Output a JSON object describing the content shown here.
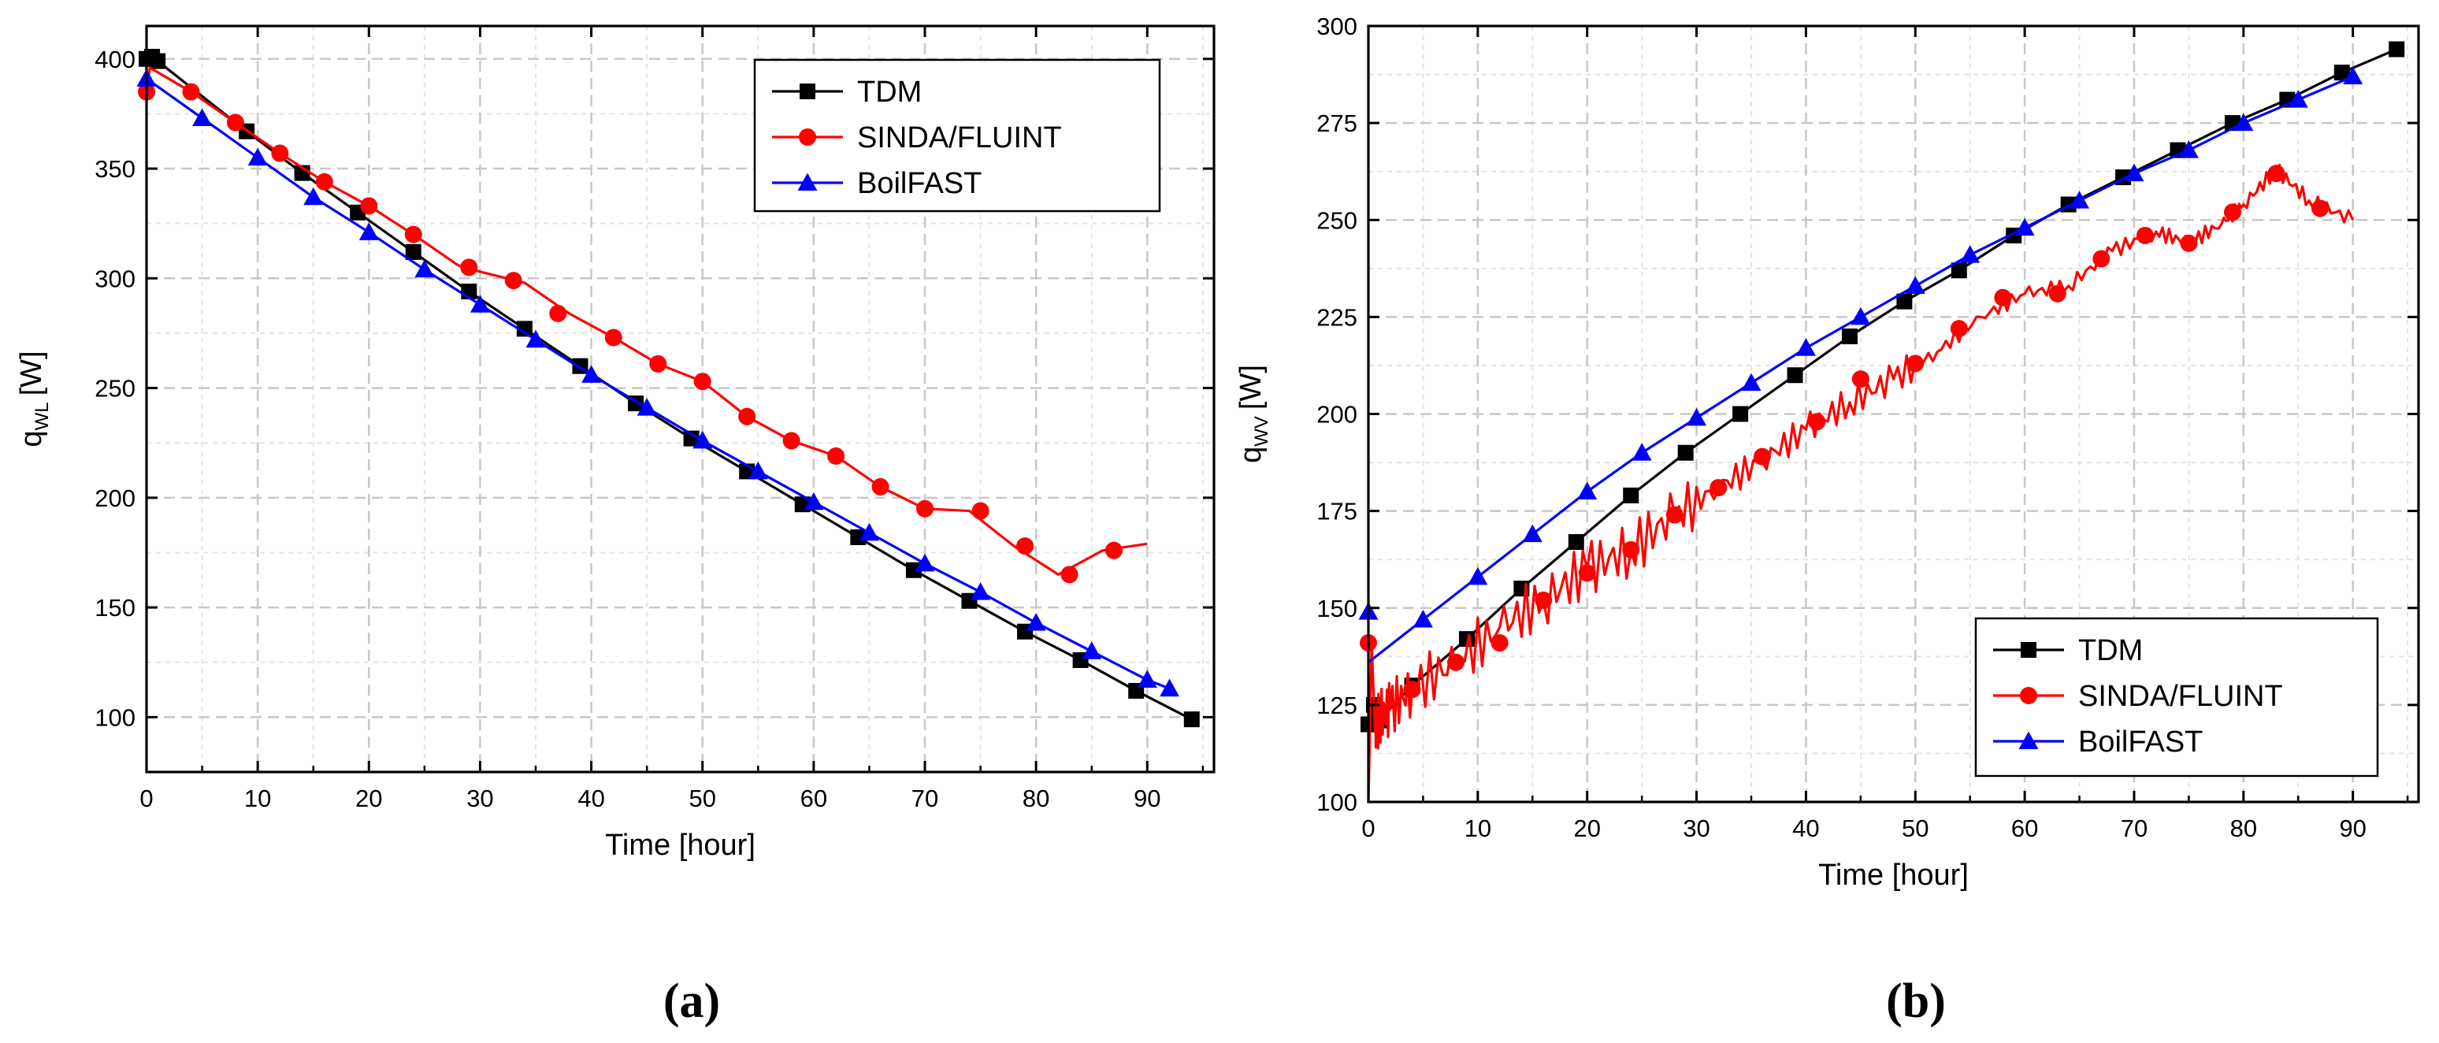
{
  "colors": {
    "TDM": "#000000",
    "SINDA/FLUINT": "#ff0000",
    "BoilFAST": "#0000ff",
    "grid": "#c8c8c8",
    "minor_grid": "#e4e4e4"
  },
  "chart_data": [
    {
      "type": "line",
      "panel": "a",
      "panel_label": "(a)",
      "xlabel": "Time [hour]",
      "ylabel_main": "q",
      "ylabel_sub": "WL",
      "ylabel_unit": "[W]",
      "xlim": [
        0,
        96
      ],
      "ylim": [
        75,
        415
      ],
      "xticks": [
        0,
        10,
        20,
        30,
        40,
        50,
        60,
        70,
        80,
        90
      ],
      "yticks": [
        100,
        150,
        200,
        250,
        300,
        350,
        400
      ],
      "grid": true,
      "legend_position": "top-right",
      "series": [
        {
          "name": "TDM",
          "marker": "square",
          "x": [
            0,
            0.5,
            1,
            9,
            14,
            19,
            24,
            29,
            34,
            39,
            44,
            49,
            54,
            59,
            64,
            69,
            74,
            79,
            84,
            89,
            94
          ],
          "y": [
            400,
            401,
            399,
            367,
            348,
            330,
            312,
            294,
            277,
            260,
            243,
            227,
            212,
            197,
            182,
            167,
            153,
            139,
            126,
            112,
            99
          ]
        },
        {
          "name": "SINDA/FLUINT",
          "marker": "circle",
          "x": [
            0,
            0.3,
            4,
            8,
            12,
            16,
            20,
            24,
            28,
            30,
            34,
            38,
            42,
            46,
            50,
            54,
            58,
            62,
            66,
            70,
            74,
            78,
            82,
            86,
            90
          ],
          "y": [
            385,
            396,
            385,
            371,
            357,
            344,
            333,
            320,
            306,
            303,
            298,
            284,
            273,
            261,
            253,
            237,
            226,
            219,
            205,
            195,
            194,
            178,
            165,
            176,
            179
          ],
          "markers_x": [
            0,
            4,
            8,
            12,
            16,
            20,
            24,
            29,
            33,
            37,
            42,
            46,
            50,
            54,
            58,
            62,
            66,
            70,
            75,
            79,
            83,
            87
          ],
          "markers_y": [
            385,
            385,
            371,
            357,
            344,
            333,
            320,
            305,
            299,
            284,
            273,
            261,
            253,
            237,
            226,
            219,
            205,
            195,
            194,
            178,
            165,
            176
          ]
        },
        {
          "name": "BoilFAST",
          "marker": "triangle",
          "x": [
            0,
            5,
            10,
            15,
            20,
            25,
            30,
            35,
            40,
            45,
            50,
            55,
            60,
            65,
            70,
            75,
            80,
            85,
            90,
            92
          ],
          "y": [
            391,
            373,
            355,
            337,
            321,
            304,
            288,
            272,
            256,
            241,
            226,
            212,
            198,
            184,
            170,
            157,
            143,
            130,
            117,
            113
          ]
        }
      ]
    },
    {
      "type": "line",
      "panel": "b",
      "panel_label": "(b)",
      "xlabel": "Time [hour]",
      "ylabel_main": "q",
      "ylabel_sub": "WV",
      "ylabel_unit": "[W]",
      "xlim": [
        0,
        96
      ],
      "ylim": [
        100,
        300
      ],
      "xticks": [
        0,
        10,
        20,
        30,
        40,
        50,
        60,
        70,
        80,
        90
      ],
      "yticks": [
        100,
        125,
        150,
        175,
        200,
        225,
        250,
        275,
        300
      ],
      "grid": true,
      "legend_position": "bottom-right",
      "series": [
        {
          "name": "TDM",
          "marker": "square",
          "x": [
            0,
            0.5,
            1,
            4,
            9,
            14,
            19,
            24,
            29,
            34,
            39,
            44,
            49,
            54,
            59,
            64,
            69,
            74,
            79,
            84,
            89,
            94
          ],
          "y": [
            120,
            125,
            121,
            130,
            142,
            155,
            167,
            179,
            190,
            200,
            210,
            220,
            229,
            237,
            246,
            254,
            261,
            268,
            275,
            281,
            288,
            294
          ]
        },
        {
          "name": "SINDA/FLUINT",
          "marker": "circle",
          "x": [
            0,
            0.3,
            0.6,
            1,
            2,
            4,
            8,
            12,
            16,
            20,
            24,
            28,
            32,
            36,
            40,
            44,
            48,
            52,
            56,
            60,
            64,
            68,
            72,
            75,
            78,
            80,
            83,
            86,
            90
          ],
          "y": [
            100,
            141,
            118,
            122,
            124,
            129,
            136,
            145,
            152,
            160,
            165,
            174,
            181,
            188,
            196,
            203,
            209,
            216,
            225,
            231,
            233,
            242,
            247,
            244,
            249,
            254,
            263,
            255,
            250
          ],
          "markers_x": [
            0,
            4,
            8,
            12,
            16,
            20,
            24,
            28,
            32,
            36,
            41,
            45,
            50,
            54,
            58,
            63,
            67,
            71,
            75,
            79,
            83,
            87
          ],
          "markers_y": [
            141,
            129,
            136,
            141,
            152,
            159,
            165,
            174,
            181,
            189,
            198,
            209,
            213,
            222,
            230,
            231,
            240,
            246,
            244,
            252,
            262,
            253
          ]
        },
        {
          "name": "BoilFAST",
          "marker": "triangle",
          "x": [
            0,
            5,
            10,
            15,
            20,
            25,
            30,
            35,
            40,
            45,
            50,
            55,
            60,
            65,
            70,
            75,
            80,
            85,
            90
          ],
          "y": [
            136,
            147,
            158,
            169,
            180,
            190,
            199,
            208,
            217,
            225,
            233,
            241,
            248,
            255,
            262,
            268,
            275,
            281,
            287
          ],
          "markers_x": [
            0,
            5,
            10,
            15,
            20,
            25,
            30,
            35,
            40,
            45,
            50,
            55,
            60,
            65,
            70,
            75,
            80,
            85,
            90
          ],
          "markers_y": [
            149,
            147,
            158,
            169,
            180,
            190,
            199,
            208,
            217,
            225,
            233,
            241,
            248,
            255,
            262,
            268,
            275,
            281,
            287
          ]
        }
      ]
    }
  ]
}
